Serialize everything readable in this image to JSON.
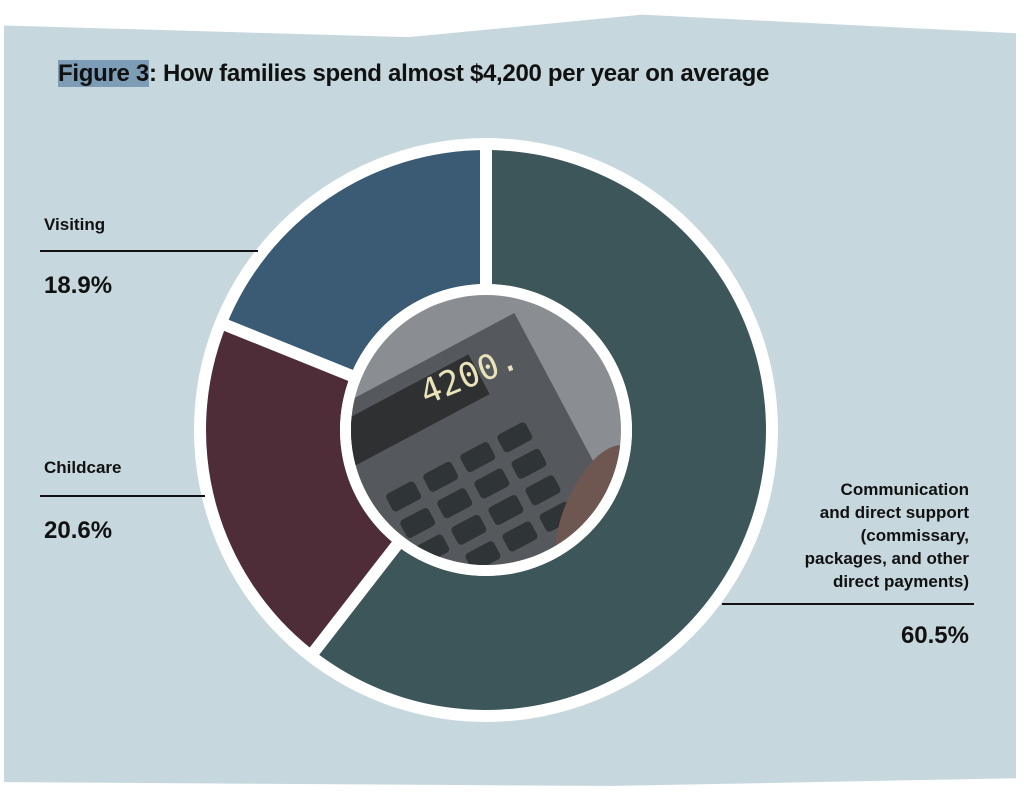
{
  "chart_data": {
    "type": "pie",
    "variant": "donut",
    "title_prefix": "Figure 3",
    "title_rest": ": How families spend almost $4,200 per year on average",
    "slices": [
      {
        "label": "Communication and direct support (commissary, packages, and other direct payments)",
        "label_lines": [
          "Communication",
          "and direct support",
          "(commissary,",
          "packages, and other",
          "direct payments)"
        ],
        "value": 60.5,
        "value_label": "60.5%",
        "color": "#3c5659"
      },
      {
        "label": "Childcare",
        "value": 20.6,
        "value_label": "20.6%",
        "color": "#4e2d38"
      },
      {
        "label": "Visiting",
        "value": 18.9,
        "value_label": "18.9%",
        "color": "#3a5b73"
      }
    ],
    "center_image_text": "4200."
  }
}
